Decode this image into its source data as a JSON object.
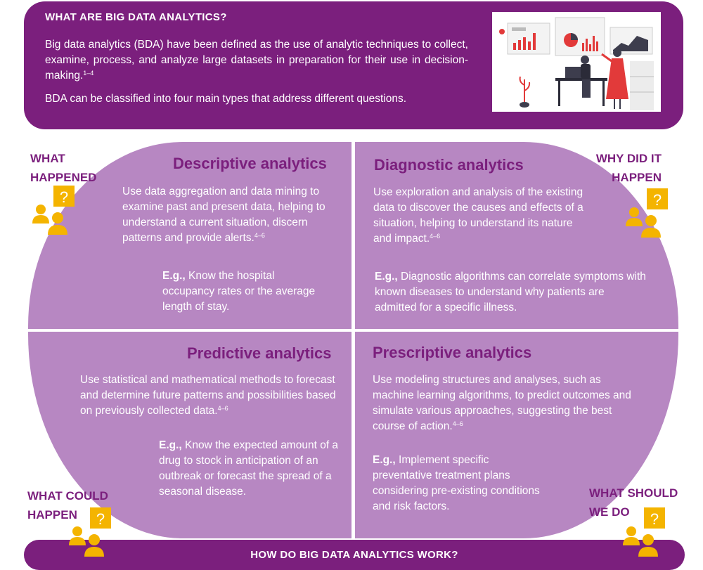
{
  "header": {
    "title": "WHAT ARE BIG DATA ANALYTICS?",
    "paragraph1": "Big data analytics (BDA) have been defined as the use of analytic techniques to collect, examine, process, and analyze large datasets in preparation for their use in decision-making.",
    "paragraph1_ref": "1–4",
    "paragraph2": "BDA can be classified into four main types that address different questions."
  },
  "quadrants": {
    "descriptive": {
      "title": "Descriptive analytics",
      "description": "Use data aggregation and data mining to examine past and present data, helping to understand a current situation, discern patterns and provide alerts.",
      "ref": "4–6",
      "eg_label": "E.g.,",
      "eg_text": " Know the hospital occupancy rates or the average length of stay."
    },
    "diagnostic": {
      "title": "Diagnostic analytics",
      "description": "Use exploration and analysis of the existing data to discover the causes and effects of a situation, helping to understand its nature and impact.",
      "ref": "4–6",
      "eg_label": "E.g.,",
      "eg_text": " Diagnostic algorithms can correlate symptoms with known diseases to understand why patients are admitted for a specific illness."
    },
    "predictive": {
      "title": "Predictive analytics",
      "description": "Use statistical and mathematical methods to forecast and determine future patterns and possibilities based on previously collected data.",
      "ref": "4–6",
      "eg_label": "E.g.,",
      "eg_text": " Know the expected amount of a drug to stock in anticipation of an outbreak or forecast the spread of a seasonal disease."
    },
    "prescriptive": {
      "title": "Prescriptive analytics",
      "description": "Use modeling structures and analyses, such as machine learning algorithms, to predict outcomes and simulate various approaches, suggesting the best course of action.",
      "ref": "4–6",
      "eg_label": "E.g.,",
      "eg_text": " Implement specific preventative treatment plans considering pre-existing conditions and risk factors."
    }
  },
  "questions": {
    "top_left_line1": "WHAT",
    "top_left_line2": "HAPPENED",
    "top_right_line1": "WHY DID IT",
    "top_right_line2": "HAPPEN",
    "bottom_left_line1": "WHAT COULD",
    "bottom_left_line2": "HAPPEN",
    "bottom_right_line1": "WHAT SHOULD",
    "bottom_right_line2": "WE DO"
  },
  "icons": {
    "question_glyph": "?",
    "icon_name": "people-question-icon",
    "illustration_name": "data-analytics-illustration"
  },
  "footer": {
    "title": "HOW DO BIG DATA ANALYTICS WORK?"
  },
  "colors": {
    "primary_purple": "#7b1f7d",
    "light_purple": "#b787c2",
    "icon_yellow": "#f4b400"
  }
}
